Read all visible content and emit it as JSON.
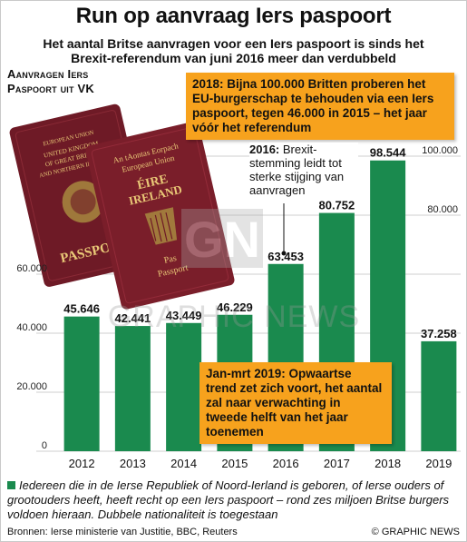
{
  "title": "Run op aanvraag Iers paspoort",
  "subtitle": "Het aantal Britse aanvragen voor een Iers paspoort is sinds het Brexit-referendum van juni 2016 meer dan verdubbeld",
  "vk_label": "Aanvragen Iers Paspoort uit VK",
  "chart_data": {
    "type": "bar",
    "categories": [
      "2012",
      "2013",
      "2014",
      "2015",
      "2016",
      "2017",
      "2018",
      "2019"
    ],
    "values": [
      45646,
      42441,
      43449,
      46229,
      63453,
      80752,
      98544,
      37258
    ],
    "value_labels": [
      "45.646",
      "42.441",
      "43.449",
      "46.229",
      "63.453",
      "80.752",
      "98.544",
      "37.258"
    ],
    "ylim": [
      0,
      100000
    ],
    "y_ticks": [
      0,
      20000,
      40000,
      60000,
      80000,
      100000
    ],
    "y_tick_labels": [
      "0",
      "20.000",
      "40.000",
      "60.000",
      "80.000",
      "100.000"
    ],
    "grid": true,
    "bar_color": "#1a8a4e"
  },
  "annotations": {
    "callout_2018": "2018: Bijna 100.000 Britten proberen het EU-burgerschap te behouden via een Iers paspoort, tegen 46.000 in 2015 – het jaar vóór het referendum",
    "note_2016_year": "2016:",
    "note_2016_text": "Brexit-stemming leidt tot sterke stijging van aanvragen",
    "callout_2019": "Jan-mrt 2019: Opwaartse trend zet zich voort, het aantal zal naar verwachting in tweede helft van het jaar toenemen"
  },
  "passports": {
    "uk_lines": [
      "EUROPEAN UNION",
      "UNITED KINGDOM",
      "OF GREAT BRITAIN",
      "AND NORTHERN IRELAND",
      "PASSPORT"
    ],
    "ie_lines": [
      "An tAontas Eorpach",
      "European Union",
      "ÉIRE",
      "IRELAND",
      "Pas",
      "Passport"
    ]
  },
  "watermark": "GRAPHIC NEWS",
  "watermark_logo": "GN",
  "footnote": "Iedereen die in de Ierse Republiek of Noord-Ierland is geboren, of Ierse ouders of grootouders heeft, heeft recht op een Iers paspoort – rond zes miljoen Britse burgers voldoen hieraan. Dubbele nationaliteit is toegestaan",
  "sources": "Bronnen: Ierse ministerie van Justitie, BBC, Reuters",
  "credit": "© GRAPHIC NEWS",
  "colors": {
    "accent": "#f7a21d",
    "bar": "#1a8a4e",
    "passport": "#7a1e2a"
  }
}
